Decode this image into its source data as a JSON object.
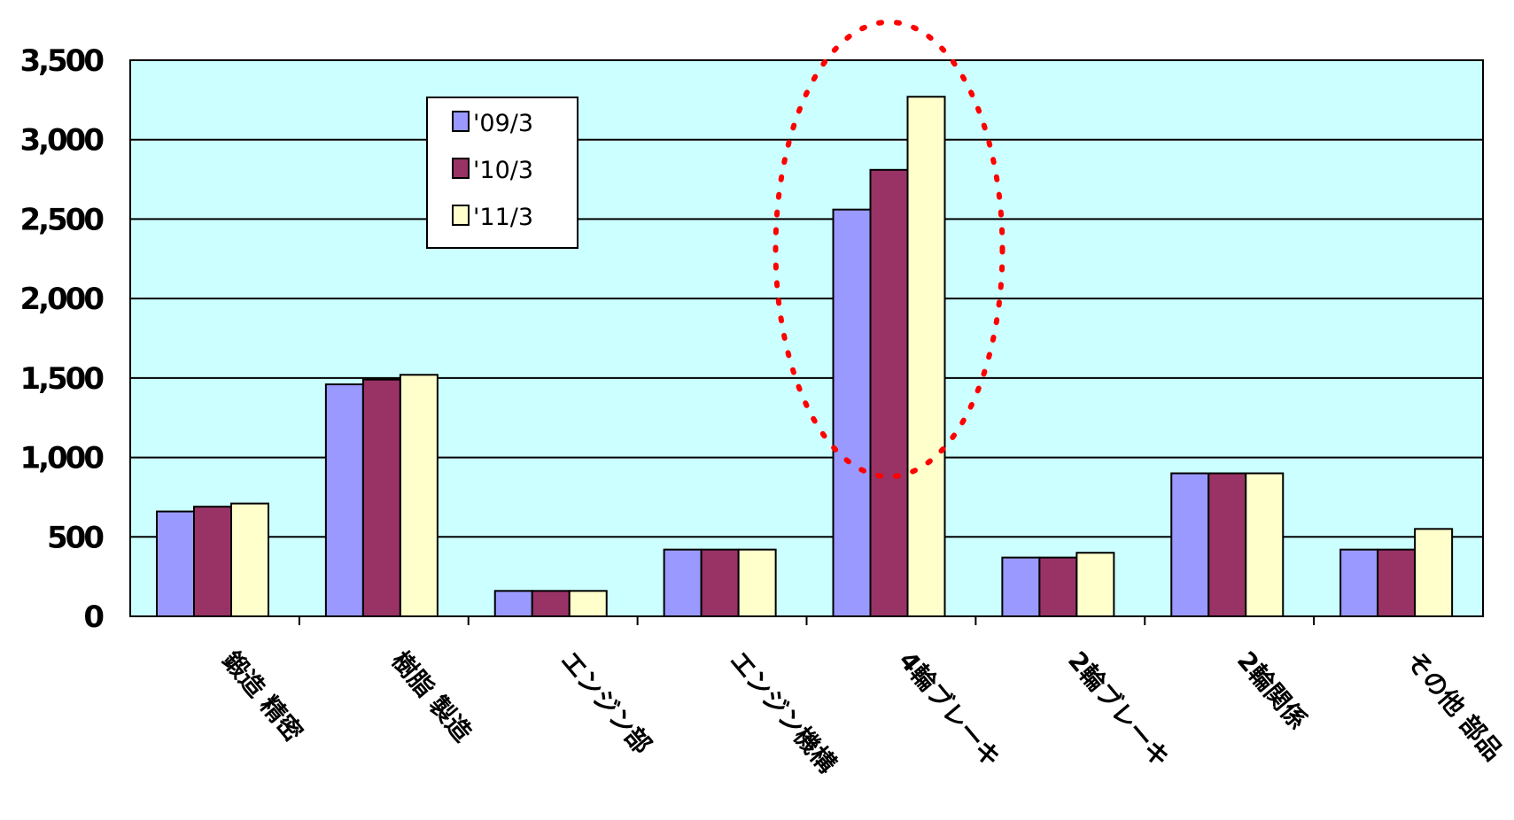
{
  "chart_data": {
    "type": "bar",
    "title": "",
    "xlabel": "",
    "ylabel": "",
    "ylim": [
      0,
      3500
    ],
    "yticks": [
      0,
      500,
      1000,
      1500,
      2000,
      2500,
      3000,
      3500
    ],
    "ytick_labels": [
      "0",
      "500",
      "1,000",
      "1,500",
      "2,000",
      "2,500",
      "3,000",
      "3,500"
    ],
    "categories": [
      "鍛造 精密",
      "樹脂 製造",
      "エンジン部",
      "エンジン機構",
      "4輪ブレーキ",
      "2輪ブレーキ",
      "2輪関係",
      "その他 部品"
    ],
    "series": [
      {
        "name": "'09/3",
        "color": "#9999ff",
        "values": [
          660,
          1460,
          160,
          420,
          2560,
          370,
          900,
          420
        ]
      },
      {
        "name": "'10/3",
        "color": "#993366",
        "values": [
          690,
          1490,
          160,
          420,
          2810,
          370,
          900,
          420
        ]
      },
      {
        "name": "'11/3",
        "color": "#ffffcc",
        "values": [
          710,
          1520,
          160,
          420,
          3270,
          400,
          900,
          550
        ]
      }
    ],
    "grid": true,
    "legend_position": "upper-left",
    "plot_background": "#ccffff",
    "highlight": {
      "category": "4輪ブレーキ",
      "style": "red dotted ellipse",
      "color": "#ff0000"
    }
  }
}
